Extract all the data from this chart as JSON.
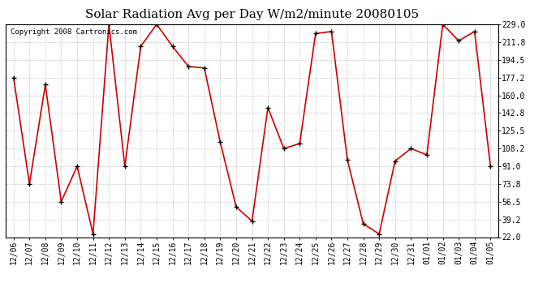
{
  "title": "Solar Radiation Avg per Day W/m2/minute 20080105",
  "copyright": "Copyright 2008 Cartronics.com",
  "x_labels": [
    "12/06",
    "12/07",
    "12/08",
    "12/09",
    "12/10",
    "12/11",
    "12/12",
    "12/13",
    "12/14",
    "12/15",
    "12/16",
    "12/17",
    "12/18",
    "12/19",
    "12/20",
    "12/21",
    "12/22",
    "12/23",
    "12/24",
    "12/25",
    "12/26",
    "12/27",
    "12/28",
    "12/29",
    "12/30",
    "12/31",
    "01/01",
    "01/02",
    "01/03",
    "01/04",
    "01/05"
  ],
  "y_values": [
    177.2,
    73.8,
    170.3,
    56.5,
    91.0,
    25.0,
    229.0,
    91.0,
    207.5,
    229.0,
    207.5,
    188.0,
    186.5,
    114.5,
    51.5,
    37.5,
    148.0,
    108.2,
    113.0,
    220.0,
    222.0,
    97.0,
    35.0,
    25.0,
    96.0,
    108.2,
    102.0,
    229.0,
    213.0,
    222.0,
    91.0
  ],
  "line_color": "#cc0000",
  "marker_color": "#000000",
  "background_color": "#ffffff",
  "plot_bg_color": "#ffffff",
  "grid_color": "#c8c8c8",
  "y_ticks": [
    22.0,
    39.2,
    56.5,
    73.8,
    91.0,
    108.2,
    125.5,
    142.8,
    160.0,
    177.2,
    194.5,
    211.8,
    229.0
  ],
  "y_min": 22.0,
  "y_max": 229.0,
  "title_fontsize": 11,
  "tick_fontsize": 7,
  "copyright_fontsize": 6.5
}
